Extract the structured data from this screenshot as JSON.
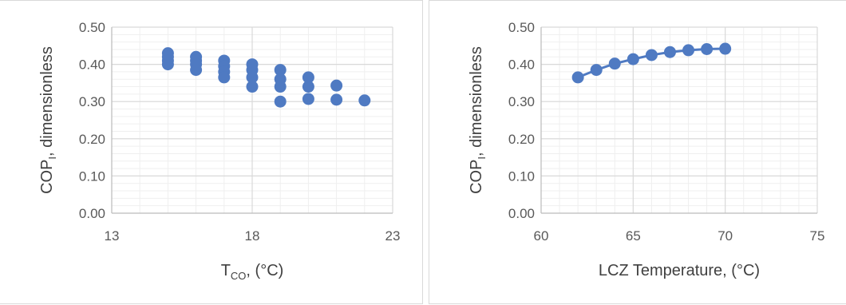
{
  "colors": {
    "series": "#4f7ac2",
    "grid_major": "#d9d9d9",
    "grid_minor": "#efefef",
    "axis": "#bfbfbf",
    "text": "#595959",
    "title": "#404040"
  },
  "chart_data": [
    {
      "type": "scatter",
      "title": "",
      "xlabel_parts": [
        "T",
        "CO",
        ", (°C)"
      ],
      "ylabel_parts": [
        "COP",
        "I",
        ", dimensionless"
      ],
      "xlim": [
        13,
        23
      ],
      "ylim": [
        0,
        0.5
      ],
      "xticks": [
        "13",
        "18",
        "23"
      ],
      "yticks": [
        "0.00",
        "0.10",
        "0.20",
        "0.30",
        "0.40",
        "0.50"
      ],
      "grid": true,
      "minor_grid": true,
      "legend": "none",
      "series": [
        {
          "points": [
            [
              15,
              0.43
            ],
            [
              15,
              0.42
            ],
            [
              15,
              0.41
            ],
            [
              15,
              0.4
            ],
            [
              16,
              0.42
            ],
            [
              16,
              0.41
            ],
            [
              16,
              0.4
            ],
            [
              16,
              0.385
            ],
            [
              17,
              0.41
            ],
            [
              17,
              0.395
            ],
            [
              17,
              0.38
            ],
            [
              17,
              0.365
            ],
            [
              18,
              0.4
            ],
            [
              18,
              0.385
            ],
            [
              18,
              0.365
            ],
            [
              18,
              0.34
            ],
            [
              19,
              0.385
            ],
            [
              19,
              0.36
            ],
            [
              19,
              0.34
            ],
            [
              19,
              0.3
            ],
            [
              20,
              0.365
            ],
            [
              20,
              0.34
            ],
            [
              20,
              0.307
            ],
            [
              21,
              0.343
            ],
            [
              21,
              0.305
            ],
            [
              22,
              0.303
            ]
          ]
        }
      ]
    },
    {
      "type": "line",
      "title": "",
      "xlabel_parts": [
        "LCZ Temperature, (°C)"
      ],
      "ylabel_parts": [
        "COP",
        "I",
        ", dimensionless"
      ],
      "xlim": [
        60,
        75
      ],
      "ylim": [
        0,
        0.5
      ],
      "xticks": [
        "60",
        "65",
        "70",
        "75"
      ],
      "yticks": [
        "0.00",
        "0.10",
        "0.20",
        "0.30",
        "0.40",
        "0.50"
      ],
      "grid": true,
      "minor_grid": true,
      "legend": "none",
      "series": [
        {
          "points": [
            [
              62,
              0.365
            ],
            [
              63,
              0.385
            ],
            [
              64,
              0.402
            ],
            [
              65,
              0.414
            ],
            [
              66,
              0.425
            ],
            [
              67,
              0.433
            ],
            [
              68,
              0.438
            ],
            [
              69,
              0.441
            ],
            [
              70,
              0.442
            ]
          ]
        }
      ]
    }
  ]
}
